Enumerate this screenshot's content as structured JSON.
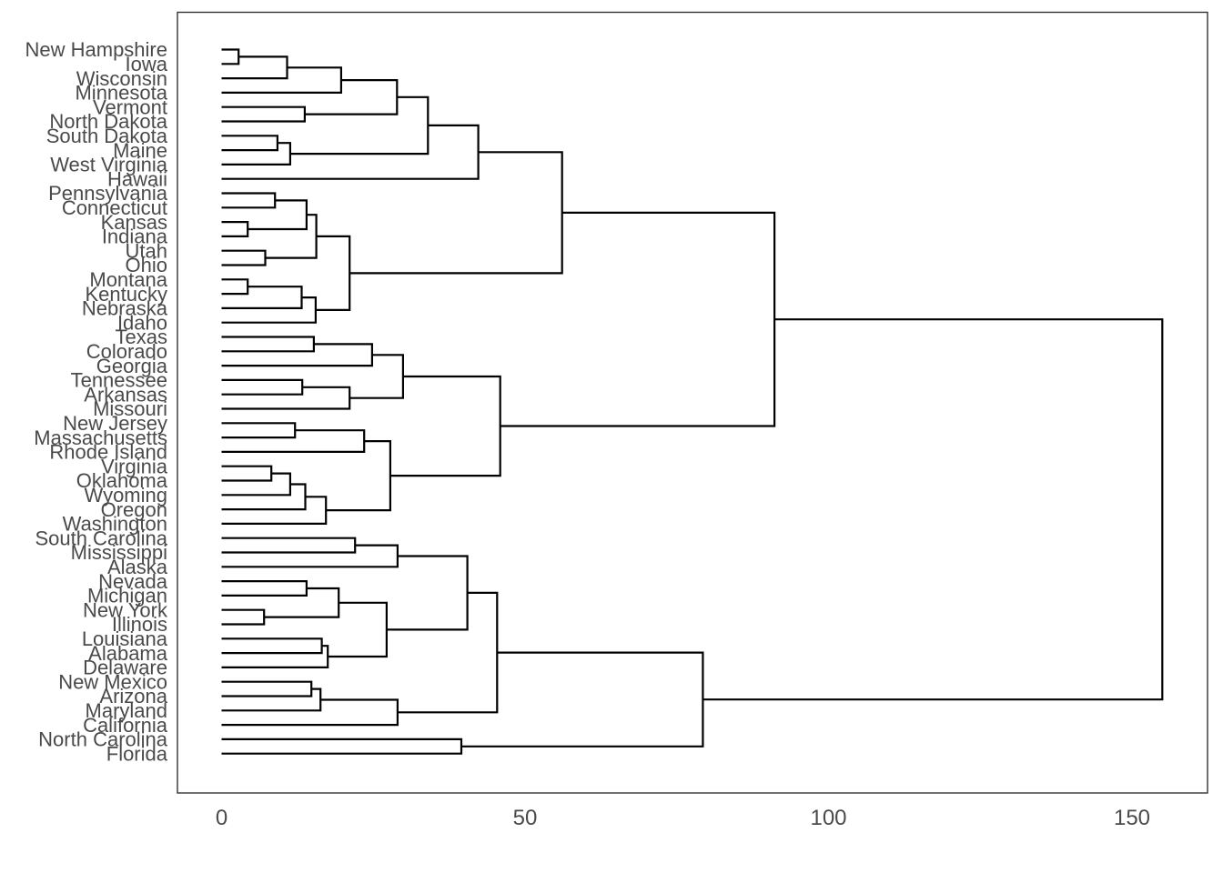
{
  "chart_data": {
    "type": "dendrogram",
    "orientation": "horizontal",
    "title": "",
    "xlabel": "",
    "ylabel": "",
    "x_axis": {
      "ticks": [
        0,
        50,
        100,
        150
      ],
      "range": [
        -7.5,
        162.5
      ],
      "grid": false
    },
    "styles": {
      "line_color": "#000000",
      "label_color": "#4a4a4a",
      "panel_border_color": "#333333",
      "background_color": "#ffffff"
    },
    "leaves": [
      "New Hampshire",
      "Iowa",
      "Wisconsin",
      "Minnesota",
      "Vermont",
      "North Dakota",
      "South Dakota",
      "Maine",
      "West Virginia",
      "Hawaii",
      "Pennsylvania",
      "Connecticut",
      "Kansas",
      "Indiana",
      "Utah",
      "Ohio",
      "Montana",
      "Kentucky",
      "Nebraska",
      "Idaho",
      "Texas",
      "Colorado",
      "Georgia",
      "Tennessee",
      "Arkansas",
      "Missouri",
      "New Jersey",
      "Massachusetts",
      "Rhode Island",
      "Virginia",
      "Oklahoma",
      "Wyoming",
      "Oregon",
      "Washington",
      "South Carolina",
      "Mississippi",
      "Alaska",
      "Nevada",
      "Michigan",
      "New York",
      "Illinois",
      "Louisiana",
      "Alabama",
      "Delaware",
      "New Mexico",
      "Arizona",
      "Maryland",
      "California",
      "North Carolina",
      "Florida"
    ],
    "merges": [
      [
        "L0",
        "L1",
        2.8
      ],
      [
        "M1",
        "L2",
        10.8
      ],
      [
        "M2",
        "L3",
        19.7
      ],
      [
        "L4",
        "L5",
        13.7
      ],
      [
        "M3",
        "M4",
        28.9
      ],
      [
        "L6",
        "L7",
        9.2
      ],
      [
        "M6",
        "L8",
        11.3
      ],
      [
        "M5",
        "M7",
        34.0
      ],
      [
        "M8",
        "L9",
        42.3
      ],
      [
        "L10",
        "L11",
        8.8
      ],
      [
        "L12",
        "L13",
        4.3
      ],
      [
        "M10",
        "M11",
        14.0
      ],
      [
        "L14",
        "L15",
        7.2
      ],
      [
        "M12",
        "M13",
        15.6
      ],
      [
        "L16",
        "L17",
        4.3
      ],
      [
        "M15",
        "L18",
        13.2
      ],
      [
        "M16",
        "L19",
        15.5
      ],
      [
        "M14",
        "M17",
        21.1
      ],
      [
        "L20",
        "L21",
        15.2
      ],
      [
        "M19",
        "L22",
        24.8
      ],
      [
        "L23",
        "L24",
        13.3
      ],
      [
        "M21",
        "L25",
        21.1
      ],
      [
        "M20",
        "M22",
        29.9
      ],
      [
        "L26",
        "L27",
        12.1
      ],
      [
        "M24",
        "L28",
        23.5
      ],
      [
        "L29",
        "L30",
        8.2
      ],
      [
        "M26",
        "L31",
        11.3
      ],
      [
        "M27",
        "L32",
        13.8
      ],
      [
        "M28",
        "L33",
        17.2
      ],
      [
        "M25",
        "M29",
        27.8
      ],
      [
        "M23",
        "M30",
        45.9
      ],
      [
        "L34",
        "L35",
        22.0
      ],
      [
        "M32",
        "L36",
        29.0
      ],
      [
        "L37",
        "L38",
        14.0
      ],
      [
        "L39",
        "L40",
        7.0
      ],
      [
        "M34",
        "M35",
        19.3
      ],
      [
        "L41",
        "L42",
        16.5
      ],
      [
        "M37",
        "L43",
        17.5
      ],
      [
        "M36",
        "M38",
        27.2
      ],
      [
        "M33",
        "M39",
        40.5
      ],
      [
        "L44",
        "L45",
        14.8
      ],
      [
        "M41",
        "L46",
        16.3
      ],
      [
        "M42",
        "L47",
        29.0
      ],
      [
        "M40",
        "M43",
        45.4
      ],
      [
        "L48",
        "L49",
        39.5
      ],
      [
        "M44",
        "M45",
        79.3
      ],
      [
        "M9",
        "M18",
        56.1
      ],
      [
        "M47",
        "M31",
        91.1
      ],
      [
        "M48",
        "M46",
        155.0
      ]
    ]
  }
}
